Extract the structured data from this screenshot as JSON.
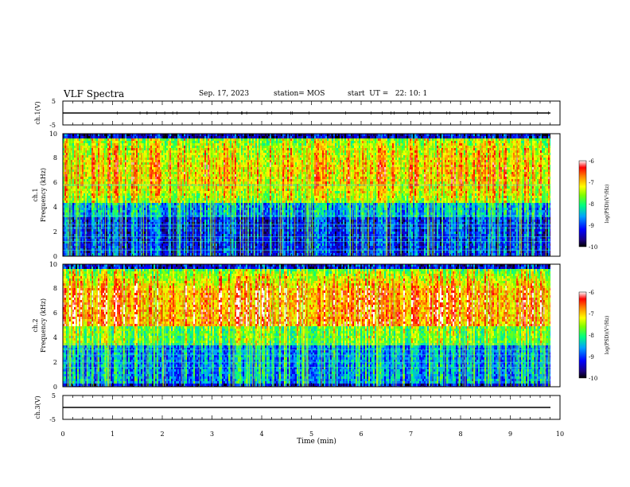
{
  "header": {
    "title": "VLF Spectra",
    "date": "Sep. 17, 2023",
    "station": "station= MOS",
    "start": "start  UT =   22: 10: 1"
  },
  "chart_data": [
    {
      "type": "line",
      "panel": "ch1-waveform",
      "ylabel": "ch.1(V)",
      "yticks": [
        "5",
        "-5"
      ],
      "ylim": [
        -5,
        5
      ],
      "xlim": [
        0,
        10
      ],
      "baseline_v": 0
    },
    {
      "type": "heatmap",
      "panel": "ch1-spectrogram",
      "ylabel_lines": [
        "ch.1",
        "Frequency (kHz)"
      ],
      "yticks": [
        "0",
        "2",
        "4",
        "6",
        "8",
        "10"
      ],
      "ylim": [
        0,
        10
      ],
      "xlim": [
        0,
        9.85
      ],
      "color_scale": "log(PSD) (V^2/Hz)",
      "colorbar_label": "log(PSD)(V²/Hz)",
      "colorbar_ticks": [
        "-6",
        "-7",
        "-8",
        "-9",
        "-10"
      ],
      "colorbar_range": [
        -10,
        -6
      ],
      "dominant_band_khz": [
        4.5,
        9.5
      ],
      "horizontal_lines_khz": [
        0.5,
        1.2,
        1.6,
        2.3,
        2.6,
        3.3,
        5.8
      ]
    },
    {
      "type": "heatmap",
      "panel": "ch2-spectrogram",
      "ylabel_lines": [
        "ch.2",
        "Frequency (kHz)"
      ],
      "yticks": [
        "0",
        "2",
        "4",
        "6",
        "8",
        "10"
      ],
      "ylim": [
        0,
        10
      ],
      "xlim": [
        0,
        9.85
      ],
      "color_scale": "log(PSD) (V^2/Hz)",
      "colorbar_label": "log(PSD)(V²/Hz)",
      "colorbar_ticks": [
        "-6",
        "-7",
        "-8",
        "-9",
        "-10"
      ],
      "colorbar_range": [
        -10,
        -6
      ],
      "dominant_band_khz": [
        4.5,
        8
      ],
      "horizontal_lines_khz": [
        1.6,
        2.0,
        2.6,
        3.0,
        3.5
      ]
    },
    {
      "type": "line",
      "panel": "ch3-waveform",
      "ylabel": "ch.3(V)",
      "yticks": [
        "5",
        "-5"
      ],
      "ylim": [
        -5,
        5
      ],
      "xlim": [
        0,
        10
      ],
      "baseline_v": 0,
      "xlabel": "Time (min)",
      "xticks": [
        "0",
        "1",
        "2",
        "3",
        "4",
        "5",
        "6",
        "7",
        "8",
        "9",
        "10"
      ]
    }
  ]
}
